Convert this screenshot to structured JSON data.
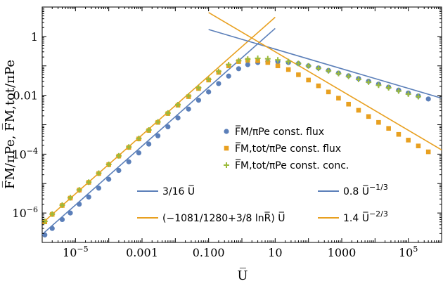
{
  "colors": {
    "blue": "#5b7fb9",
    "orange": "#e8a020",
    "green": "#9bbb3b",
    "axis": "#000000"
  },
  "chart_data": {
    "type": "scatter",
    "scale": {
      "x": "log",
      "y": "log"
    },
    "xlim": [
      1e-06,
      1000000.0
    ],
    "ylim": [
      1e-07,
      10
    ],
    "grid": false,
    "xlabel": "U̅",
    "ylabel": "F̅M/πPe, F̅M,tot/πPe",
    "x_ticks": [
      {
        "value": 1e-05,
        "label": "10",
        "sup": "−5"
      },
      {
        "value": 0.001,
        "label": "0.001",
        "sup": ""
      },
      {
        "value": 0.1,
        "label": "0.100",
        "sup": ""
      },
      {
        "value": 10,
        "label": "10",
        "sup": ""
      },
      {
        "value": 1000,
        "label": "1000",
        "sup": ""
      },
      {
        "value": 100000.0,
        "label": "10",
        "sup": "5"
      }
    ],
    "y_ticks": [
      {
        "value": 1,
        "label": "1",
        "sup": ""
      },
      {
        "value": 0.01,
        "label": "0.01",
        "sup": ""
      },
      {
        "value": 0.0001,
        "label": "10",
        "sup": "−4"
      },
      {
        "value": 1e-06,
        "label": "10",
        "sup": "−6"
      }
    ],
    "legend_markers": [
      {
        "text": "F̅M/πPe const. flux",
        "marker": "circle",
        "color": "#5b7fb9"
      },
      {
        "text": "F̅M,tot/πPe const. flux",
        "marker": "square",
        "color": "#e8a020"
      },
      {
        "text": "F̅M,tot/πPe const. conc.",
        "marker": "plus",
        "color": "#9bbb3b"
      }
    ],
    "legend_lines": [
      {
        "text": "3/16 U̅",
        "color": "#5b7fb9"
      },
      {
        "text": "(−1081/1280+3/8 lnR̅) U̅",
        "color": "#e8a020"
      },
      {
        "text": "0.8 U̅",
        "sup": "−1/3",
        "color": "#5b7fb9"
      },
      {
        "text": "1.4 U̅",
        "sup": "−2/3",
        "color": "#e8a020"
      }
    ],
    "series": [
      {
        "name": "F̅M/πPe const. flux",
        "marker": "circle",
        "color": "#5b7fb9",
        "x": [
          1.2e-06,
          2e-06,
          4e-06,
          7e-06,
          1.3e-05,
          2.5e-05,
          5e-05,
          0.0001,
          0.0002,
          0.0004,
          0.0008,
          0.0016,
          0.003,
          0.006,
          0.012,
          0.025,
          0.05,
          0.1,
          0.2,
          0.4,
          0.8,
          1.5,
          3,
          6,
          12,
          25,
          50,
          100,
          200,
          400,
          800,
          1600,
          3200,
          6400,
          12800,
          25600,
          51200,
          100000.0,
          200000.0,
          400000.0
        ],
        "y": [
          1.8e-07,
          3e-07,
          6e-07,
          1e-06,
          2e-06,
          3.5e-06,
          7e-06,
          1.4e-05,
          2.8e-05,
          5.5e-05,
          0.00011,
          0.00022,
          0.00042,
          0.00085,
          0.0017,
          0.0034,
          0.0068,
          0.013,
          0.025,
          0.045,
          0.08,
          0.11,
          0.13,
          0.14,
          0.14,
          0.13,
          0.12,
          0.1,
          0.085,
          0.07,
          0.057,
          0.046,
          0.037,
          0.03,
          0.024,
          0.019,
          0.015,
          0.012,
          0.0095,
          0.0075
        ]
      },
      {
        "name": "F̅M,tot/πPe const. flux",
        "marker": "square",
        "color": "#e8a020",
        "x": [
          1.2e-06,
          2e-06,
          4e-06,
          7e-06,
          1.3e-05,
          2.5e-05,
          5e-05,
          0.0001,
          0.0002,
          0.0004,
          0.0008,
          0.0016,
          0.003,
          0.006,
          0.012,
          0.025,
          0.05,
          0.1,
          0.2,
          0.4,
          0.8,
          1.5,
          3,
          6,
          12,
          25,
          50,
          100,
          200,
          400,
          800,
          1600,
          3200,
          6400,
          12800,
          25600,
          51200,
          100000.0,
          200000.0,
          400000.0
        ],
        "y": [
          5e-07,
          9e-07,
          1.8e-06,
          3.2e-06,
          6e-06,
          1.1e-05,
          2.2e-05,
          4.4e-05,
          8.6e-05,
          0.00017,
          0.00033,
          0.00064,
          0.0012,
          0.0024,
          0.0046,
          0.009,
          0.017,
          0.033,
          0.06,
          0.1,
          0.14,
          0.155,
          0.15,
          0.13,
          0.1,
          0.075,
          0.05,
          0.033,
          0.021,
          0.013,
          0.008,
          0.005,
          0.0031,
          0.0019,
          0.0012,
          0.00075,
          0.00047,
          0.0003,
          0.00019,
          0.00012
        ]
      },
      {
        "name": "F̅M,tot/πPe const. conc.",
        "marker": "plus",
        "color": "#9bbb3b",
        "x": [
          1.2e-06,
          2e-06,
          4e-06,
          7e-06,
          1.3e-05,
          2.5e-05,
          5e-05,
          0.0001,
          0.0002,
          0.0004,
          0.0008,
          0.0016,
          0.003,
          0.006,
          0.012,
          0.025,
          0.05,
          0.1,
          0.2,
          0.4,
          0.8,
          1.5,
          3,
          6,
          12,
          25,
          50,
          100,
          200,
          400,
          800,
          1600,
          3200,
          6400,
          12800,
          25600,
          51200,
          100000.0,
          200000.0
        ],
        "y": [
          5.2e-07,
          9.2e-07,
          1.85e-06,
          3.3e-06,
          6.1e-06,
          1.12e-05,
          2.25e-05,
          4.5e-05,
          8.8e-05,
          0.000175,
          0.00034,
          0.00066,
          0.00125,
          0.0025,
          0.0048,
          0.0095,
          0.018,
          0.035,
          0.065,
          0.11,
          0.15,
          0.17,
          0.18,
          0.175,
          0.16,
          0.14,
          0.12,
          0.1,
          0.083,
          0.068,
          0.055,
          0.044,
          0.035,
          0.028,
          0.022,
          0.018,
          0.014,
          0.011,
          0.009
        ]
      }
    ],
    "lines": [
      {
        "name": "3/16 U̅",
        "color": "#5b7fb9",
        "x": [
          1e-06,
          10
        ],
        "y": [
          1.875e-07,
          1.875
        ]
      },
      {
        "name": "(−1081/1280+3/8 lnR̅) U̅",
        "color": "#e8a020",
        "x": [
          1e-06,
          10
        ],
        "y": [
          4.5e-07,
          4.5
        ]
      },
      {
        "name": "0.8 U̅^−1/3",
        "color": "#5b7fb9",
        "x": [
          0.1,
          1000000.0
        ],
        "y": [
          1.72,
          0.008
        ]
      },
      {
        "name": "1.4 U̅^−2/3",
        "color": "#e8a020",
        "x": [
          0.1,
          1000000.0
        ],
        "y": [
          6.5,
          0.00014
        ]
      }
    ]
  }
}
